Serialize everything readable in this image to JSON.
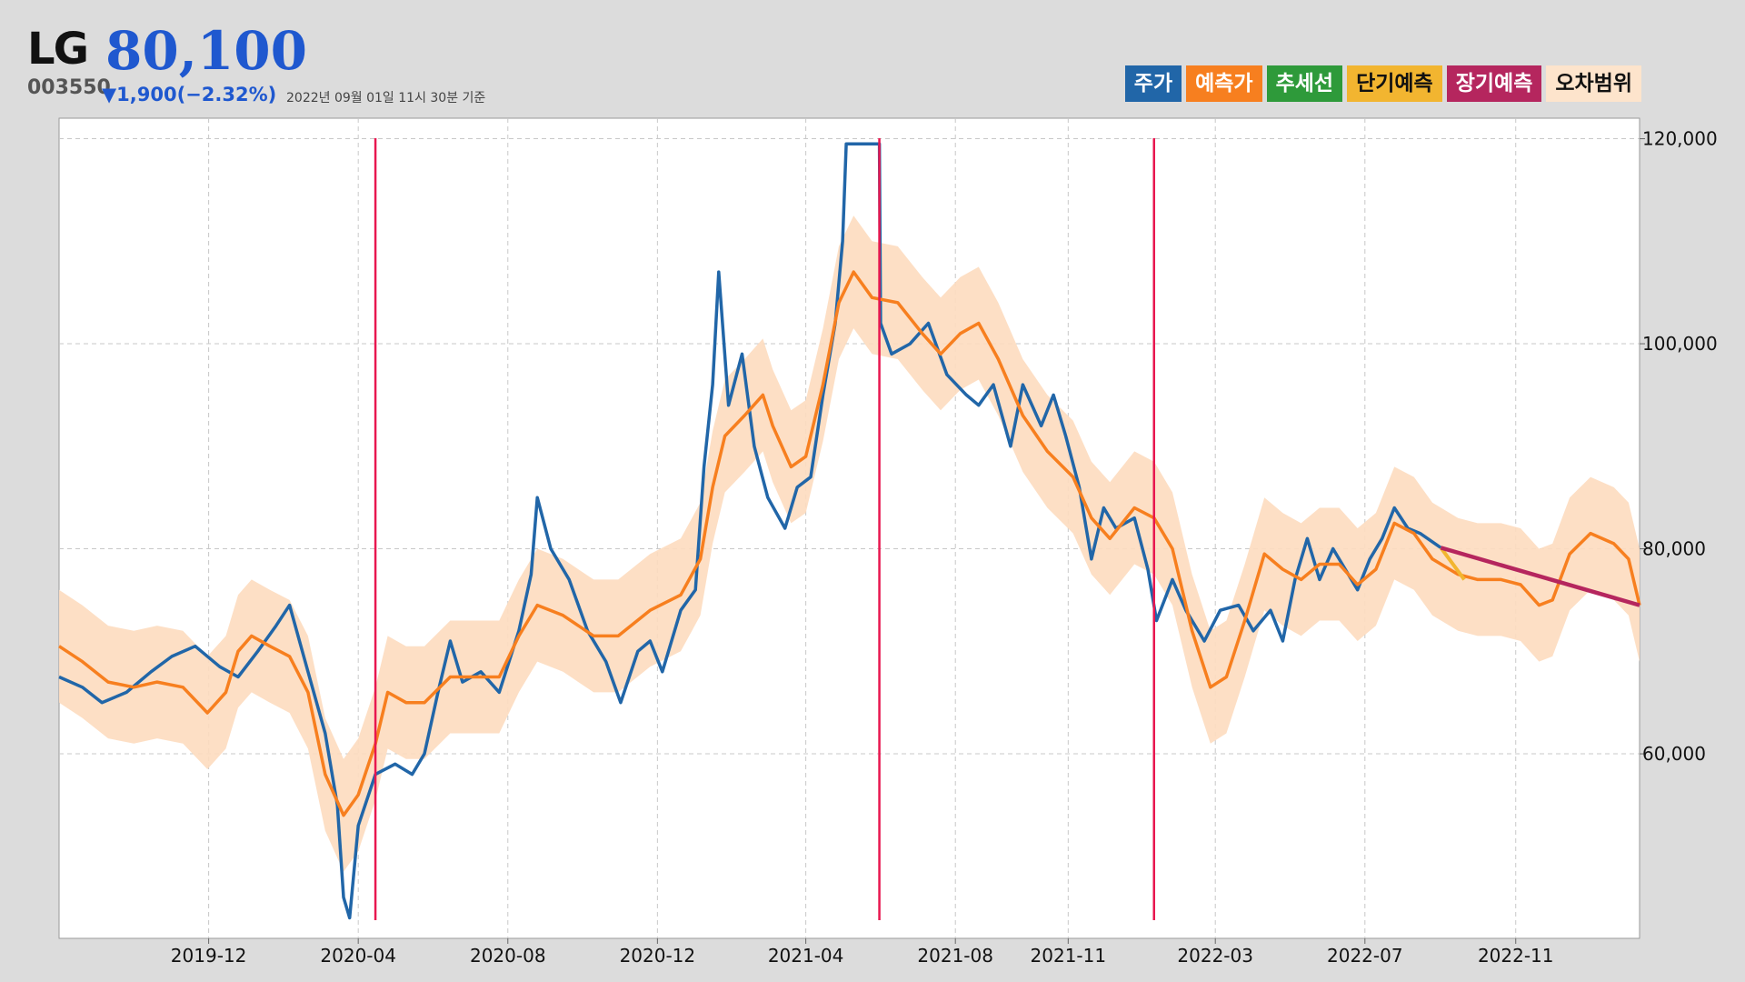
{
  "header": {
    "name": "LG",
    "price": "80,100",
    "code": "003550",
    "change": "▼1,900(−2.32%)",
    "asof": "2022년 09월 01일 11시 30분 기준"
  },
  "legend": [
    {
      "label": "주가",
      "bg": "#2166a8",
      "fg": "#ffffff"
    },
    {
      "label": "예측가",
      "bg": "#f77f1f",
      "fg": "#ffffff"
    },
    {
      "label": "추세선",
      "bg": "#2e9a3a",
      "fg": "#ffffff"
    },
    {
      "label": "단기예측",
      "bg": "#f2b530",
      "fg": "#111111"
    },
    {
      "label": "장기예측",
      "bg": "#b5265e",
      "fg": "#ffffff"
    },
    {
      "label": "오차범위",
      "bg": "#fde4cc",
      "fg": "#111111"
    }
  ],
  "colors": {
    "price": "#2166a8",
    "forecast": "#f77f1f",
    "short_term": "#f2b530",
    "long_term": "#b5265e",
    "band": "#fddcbf",
    "event_line": "#e8174f",
    "grid": "#c8c8c8"
  },
  "chart_data": {
    "type": "line",
    "xlabel": "",
    "ylabel": "",
    "x_ticks": [
      "2019-12",
      "2020-04",
      "2020-08",
      "2020-12",
      "2021-04",
      "2021-08",
      "2021-11",
      "2022-03",
      "2022-07",
      "2022-11"
    ],
    "y_ticks": [
      60000,
      80000,
      100000,
      120000
    ],
    "y_tick_labels": [
      "60,000",
      "80,000",
      "100,000",
      "120,000"
    ],
    "xlim": [
      "2019-08-01",
      "2023-02-10"
    ],
    "ylim": [
      42000,
      122000
    ],
    "grid": true,
    "legend_position": "top-right",
    "series": [
      {
        "name": "주가",
        "points": [
          [
            "2019-08-01",
            67500
          ],
          [
            "2019-08-20",
            66500
          ],
          [
            "2019-09-05",
            65000
          ],
          [
            "2019-09-25",
            66000
          ],
          [
            "2019-10-15",
            68000
          ],
          [
            "2019-11-01",
            69500
          ],
          [
            "2019-11-20",
            70500
          ],
          [
            "2019-12-10",
            68500
          ],
          [
            "2019-12-25",
            67500
          ],
          [
            "2020-01-10",
            70000
          ],
          [
            "2020-01-25",
            72500
          ],
          [
            "2020-02-05",
            74500
          ],
          [
            "2020-02-20",
            68000
          ],
          [
            "2020-03-05",
            62000
          ],
          [
            "2020-03-15",
            55000
          ],
          [
            "2020-03-20",
            46000
          ],
          [
            "2020-03-25",
            44000
          ],
          [
            "2020-04-01",
            53000
          ],
          [
            "2020-04-15",
            58000
          ],
          [
            "2020-05-01",
            59000
          ],
          [
            "2020-05-15",
            58000
          ],
          [
            "2020-05-25",
            60000
          ],
          [
            "2020-06-05",
            66000
          ],
          [
            "2020-06-15",
            71000
          ],
          [
            "2020-06-25",
            67000
          ],
          [
            "2020-07-10",
            68000
          ],
          [
            "2020-07-25",
            66000
          ],
          [
            "2020-08-10",
            72000
          ],
          [
            "2020-08-20",
            77500
          ],
          [
            "2020-08-25",
            85000
          ],
          [
            "2020-09-05",
            80000
          ],
          [
            "2020-09-20",
            77000
          ],
          [
            "2020-10-05",
            72000
          ],
          [
            "2020-10-20",
            69000
          ],
          [
            "2020-11-01",
            65000
          ],
          [
            "2020-11-15",
            70000
          ],
          [
            "2020-11-25",
            71000
          ],
          [
            "2020-12-05",
            68000
          ],
          [
            "2020-12-20",
            74000
          ],
          [
            "2021-01-01",
            76000
          ],
          [
            "2021-01-08",
            88000
          ],
          [
            "2021-01-15",
            96000
          ],
          [
            "2021-01-20",
            107000
          ],
          [
            "2021-01-28",
            94000
          ],
          [
            "2021-02-08",
            99000
          ],
          [
            "2021-02-18",
            90000
          ],
          [
            "2021-03-01",
            85000
          ],
          [
            "2021-03-15",
            82000
          ],
          [
            "2021-03-25",
            86000
          ],
          [
            "2021-04-05",
            87000
          ],
          [
            "2021-04-15",
            95000
          ],
          [
            "2021-04-25",
            102000
          ],
          [
            "2021-05-01",
            110000
          ],
          [
            "2021-05-04",
            119500
          ],
          [
            "2021-05-31",
            119500
          ],
          [
            "2021-06-01",
            102000
          ],
          [
            "2021-06-10",
            99000
          ],
          [
            "2021-06-25",
            100000
          ],
          [
            "2021-07-10",
            102000
          ],
          [
            "2021-07-25",
            97000
          ],
          [
            "2021-08-10",
            95000
          ],
          [
            "2021-08-20",
            94000
          ],
          [
            "2021-09-01",
            96000
          ],
          [
            "2021-09-15",
            90000
          ],
          [
            "2021-09-25",
            96000
          ],
          [
            "2021-10-10",
            92000
          ],
          [
            "2021-10-20",
            95000
          ],
          [
            "2021-10-30",
            91000
          ],
          [
            "2021-11-10",
            86000
          ],
          [
            "2021-11-20",
            79000
          ],
          [
            "2021-11-30",
            84000
          ],
          [
            "2021-12-10",
            82000
          ],
          [
            "2021-12-25",
            83000
          ],
          [
            "2022-01-05",
            78000
          ],
          [
            "2022-01-12",
            73000
          ],
          [
            "2022-01-25",
            77000
          ],
          [
            "2022-02-05",
            74000
          ],
          [
            "2022-02-20",
            71000
          ],
          [
            "2022-03-05",
            74000
          ],
          [
            "2022-03-20",
            74500
          ],
          [
            "2022-04-01",
            72000
          ],
          [
            "2022-04-15",
            74000
          ],
          [
            "2022-04-25",
            71000
          ],
          [
            "2022-05-05",
            77000
          ],
          [
            "2022-05-15",
            81000
          ],
          [
            "2022-05-25",
            77000
          ],
          [
            "2022-06-05",
            80000
          ],
          [
            "2022-06-15",
            78000
          ],
          [
            "2022-06-25",
            76000
          ],
          [
            "2022-07-05",
            79000
          ],
          [
            "2022-07-15",
            81000
          ],
          [
            "2022-07-25",
            84000
          ],
          [
            "2022-08-05",
            82000
          ],
          [
            "2022-08-15",
            81500
          ],
          [
            "2022-09-01",
            80100
          ]
        ]
      },
      {
        "name": "예측가",
        "points": [
          [
            "2019-08-01",
            70500
          ],
          [
            "2019-08-20",
            69000
          ],
          [
            "2019-09-10",
            67000
          ],
          [
            "2019-10-01",
            66500
          ],
          [
            "2019-10-20",
            67000
          ],
          [
            "2019-11-10",
            66500
          ],
          [
            "2019-11-30",
            64000
          ],
          [
            "2019-12-15",
            66000
          ],
          [
            "2019-12-25",
            70000
          ],
          [
            "2020-01-05",
            71500
          ],
          [
            "2020-01-20",
            70500
          ],
          [
            "2020-02-05",
            69500
          ],
          [
            "2020-02-20",
            66000
          ],
          [
            "2020-03-05",
            58000
          ],
          [
            "2020-03-20",
            54000
          ],
          [
            "2020-04-01",
            56000
          ],
          [
            "2020-04-15",
            61000
          ],
          [
            "2020-04-25",
            66000
          ],
          [
            "2020-05-10",
            65000
          ],
          [
            "2020-05-25",
            65000
          ],
          [
            "2020-06-15",
            67500
          ],
          [
            "2020-07-05",
            67500
          ],
          [
            "2020-07-25",
            67500
          ],
          [
            "2020-08-10",
            71500
          ],
          [
            "2020-08-25",
            74500
          ],
          [
            "2020-09-15",
            73500
          ],
          [
            "2020-10-10",
            71500
          ],
          [
            "2020-10-30",
            71500
          ],
          [
            "2020-11-25",
            74000
          ],
          [
            "2020-12-20",
            75500
          ],
          [
            "2021-01-05",
            79000
          ],
          [
            "2021-01-15",
            86000
          ],
          [
            "2021-01-25",
            91000
          ],
          [
            "2021-02-10",
            93000
          ],
          [
            "2021-02-25",
            95000
          ],
          [
            "2021-03-05",
            92000
          ],
          [
            "2021-03-20",
            88000
          ],
          [
            "2021-04-01",
            89000
          ],
          [
            "2021-04-15",
            96000
          ],
          [
            "2021-04-28",
            104000
          ],
          [
            "2021-05-10",
            107000
          ],
          [
            "2021-05-25",
            104500
          ],
          [
            "2021-06-15",
            104000
          ],
          [
            "2021-07-05",
            101000
          ],
          [
            "2021-07-20",
            99000
          ],
          [
            "2021-08-05",
            101000
          ],
          [
            "2021-08-20",
            102000
          ],
          [
            "2021-09-05",
            98500
          ],
          [
            "2021-09-25",
            93000
          ],
          [
            "2021-10-15",
            89500
          ],
          [
            "2021-11-05",
            87000
          ],
          [
            "2021-11-20",
            83000
          ],
          [
            "2021-12-05",
            81000
          ],
          [
            "2021-12-25",
            84000
          ],
          [
            "2022-01-10",
            83000
          ],
          [
            "2022-01-25",
            80000
          ],
          [
            "2022-02-10",
            72000
          ],
          [
            "2022-02-25",
            66500
          ],
          [
            "2022-03-10",
            67500
          ],
          [
            "2022-03-25",
            73000
          ],
          [
            "2022-04-10",
            79500
          ],
          [
            "2022-04-25",
            78000
          ],
          [
            "2022-05-10",
            77000
          ],
          [
            "2022-05-25",
            78500
          ],
          [
            "2022-06-10",
            78500
          ],
          [
            "2022-06-25",
            76500
          ],
          [
            "2022-07-10",
            78000
          ],
          [
            "2022-07-25",
            82500
          ],
          [
            "2022-08-10",
            81500
          ],
          [
            "2022-08-25",
            79000
          ],
          [
            "2022-09-15",
            77500
          ],
          [
            "2022-10-01",
            77000
          ],
          [
            "2022-10-20",
            77000
          ],
          [
            "2022-11-05",
            76500
          ],
          [
            "2022-11-20",
            74500
          ],
          [
            "2022-12-01",
            75000
          ],
          [
            "2022-12-15",
            79500
          ],
          [
            "2023-01-01",
            81500
          ],
          [
            "2023-01-20",
            80500
          ],
          [
            "2023-02-01",
            79000
          ],
          [
            "2023-02-10",
            74500
          ]
        ]
      },
      {
        "name": "단기예측",
        "points": [
          [
            "2022-09-01",
            80100
          ],
          [
            "2022-09-20",
            77000
          ]
        ]
      },
      {
        "name": "장기예측",
        "points": [
          [
            "2022-09-01",
            80100
          ],
          [
            "2023-02-10",
            74500
          ]
        ]
      }
    ],
    "error_band": {
      "name": "오차범위",
      "upper_offset": 5500,
      "lower_offset": 5500
    },
    "event_lines": [
      "2020-04-15",
      "2021-05-31",
      "2022-01-10"
    ]
  }
}
